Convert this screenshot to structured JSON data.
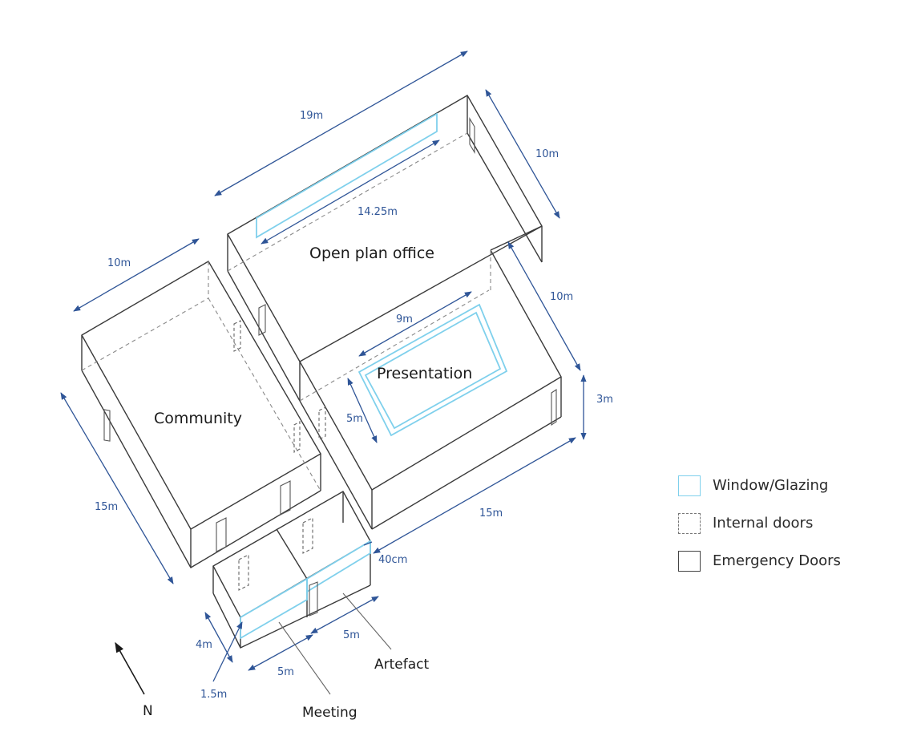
{
  "rooms": {
    "community": "Community",
    "open_plan": "Open plan office",
    "presentation": "Presentation",
    "artefact": "Artefact",
    "meeting": "Meeting"
  },
  "dimensions": {
    "office_length": "19m",
    "window_length": "14.25m",
    "office_width": "10m",
    "community_width": "10m",
    "presentation_block_width": "10m",
    "presentation_zone_length": "9m",
    "presentation_zone_width": "5m",
    "wall_height": "3m",
    "community_length": "15m",
    "presentation_block_length": "15m",
    "wall_thickness": "40cm",
    "meeting_depth": "4m",
    "meeting_length": "5m",
    "artefact_length": "5m",
    "meeting_window": "1.5m"
  },
  "compass": {
    "label": "N"
  },
  "legend": {
    "window": "Window/Glazing",
    "internal": "Internal doors",
    "emergency": "Emergency Doors"
  },
  "colors": {
    "dimension": "#2f5597",
    "glazing": "#7fd0ec",
    "wall": "#3a3a3a"
  }
}
